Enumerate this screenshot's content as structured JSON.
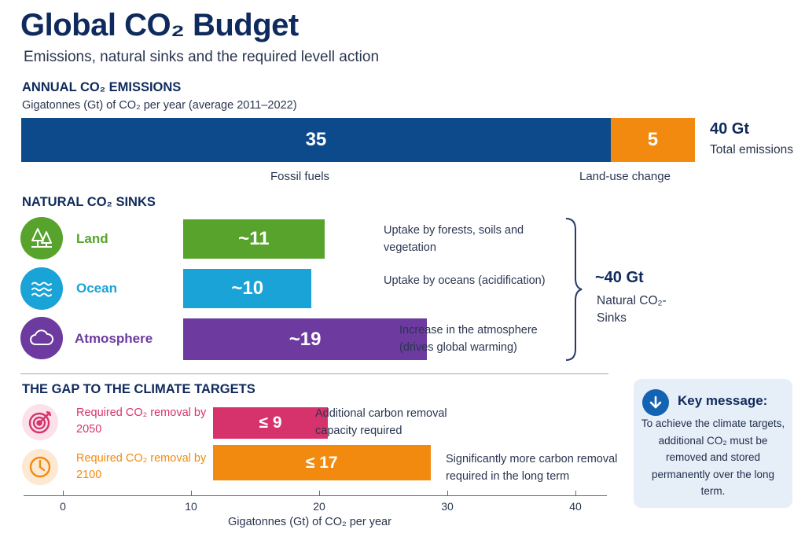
{
  "title": "Global CO₂ Budget",
  "subtitle": "Emissions, natural sinks and the required levell action",
  "emissions": {
    "heading": "ANNUAL CO₂ EMISSIONS",
    "unit": "Gigatonnes (Gt) of CO₂ per year (average 2011–2022)",
    "total_value": "40 Gt",
    "total_label": "Total emissions",
    "colors": {
      "fossil": "#0d4a8c",
      "landuse": "#f28a0f"
    }
  },
  "sinks": {
    "heading": "NATURAL CO₂ SINKS",
    "items": [
      {
        "name": "Land",
        "desc": "Uptake by forests, soils and vegetation",
        "color": "#57a32b",
        "icon": "trees-icon"
      },
      {
        "name": "Ocean",
        "desc": "Uptake by oceans (acidification)",
        "color": "#1aa3d6",
        "icon": "waves-icon"
      },
      {
        "name": "Atmosphere",
        "desc": "Increase in the atmosphere (drives global warming)",
        "color": "#6d3aa0",
        "icon": "cloud-icon"
      }
    ],
    "total_value": "~40 Gt",
    "total_label": "Natural CO₂-Sinks"
  },
  "gap": {
    "heading": "THE GAP TO THE CLIMATE TARGETS",
    "items": [
      {
        "name": "Required CO₂ removal by 2050",
        "desc": "Additional carbon removal capacity required",
        "color": "#d6336c",
        "icon": "target-icon"
      },
      {
        "name": "Required CO₂ removal by 2100",
        "desc": "Significantly more carbon removal required in the long term",
        "color": "#f28a0f",
        "icon": "clock-icon"
      }
    ]
  },
  "key_message": {
    "title": "Key message:",
    "text": "To achieve the climate targets, additional CO₂ must be removed and stored permanently over the long term.",
    "icon": "arrow-down-icon"
  },
  "chart_data": [
    {
      "type": "bar",
      "title": "ANNUAL CO₂ EMISSIONS",
      "stacked": true,
      "categories": [
        "Fossil fuels",
        "Land-use change"
      ],
      "values": [
        35,
        5
      ],
      "value_labels": [
        "35",
        "5"
      ],
      "unit": "Gt CO₂ per year"
    },
    {
      "type": "bar",
      "title": "NATURAL CO₂ SINKS",
      "categories": [
        "Land",
        "Ocean",
        "Atmosphere"
      ],
      "values": [
        11,
        10,
        19
      ],
      "value_labels": [
        "~11",
        "~10",
        "~19"
      ]
    },
    {
      "type": "bar",
      "title": "THE GAP TO THE CLIMATE TARGETS",
      "categories": [
        "Required CO₂ removal by 2050",
        "Required CO₂ removal by 2100"
      ],
      "values": [
        9,
        17
      ],
      "value_labels": [
        "≤ 9",
        "≤ 17"
      ],
      "xlabel": "Gigatonnes (Gt) of CO₂ per year",
      "xticks": [
        0,
        10,
        20,
        30,
        40
      ],
      "xlim": [
        0,
        40
      ]
    }
  ]
}
